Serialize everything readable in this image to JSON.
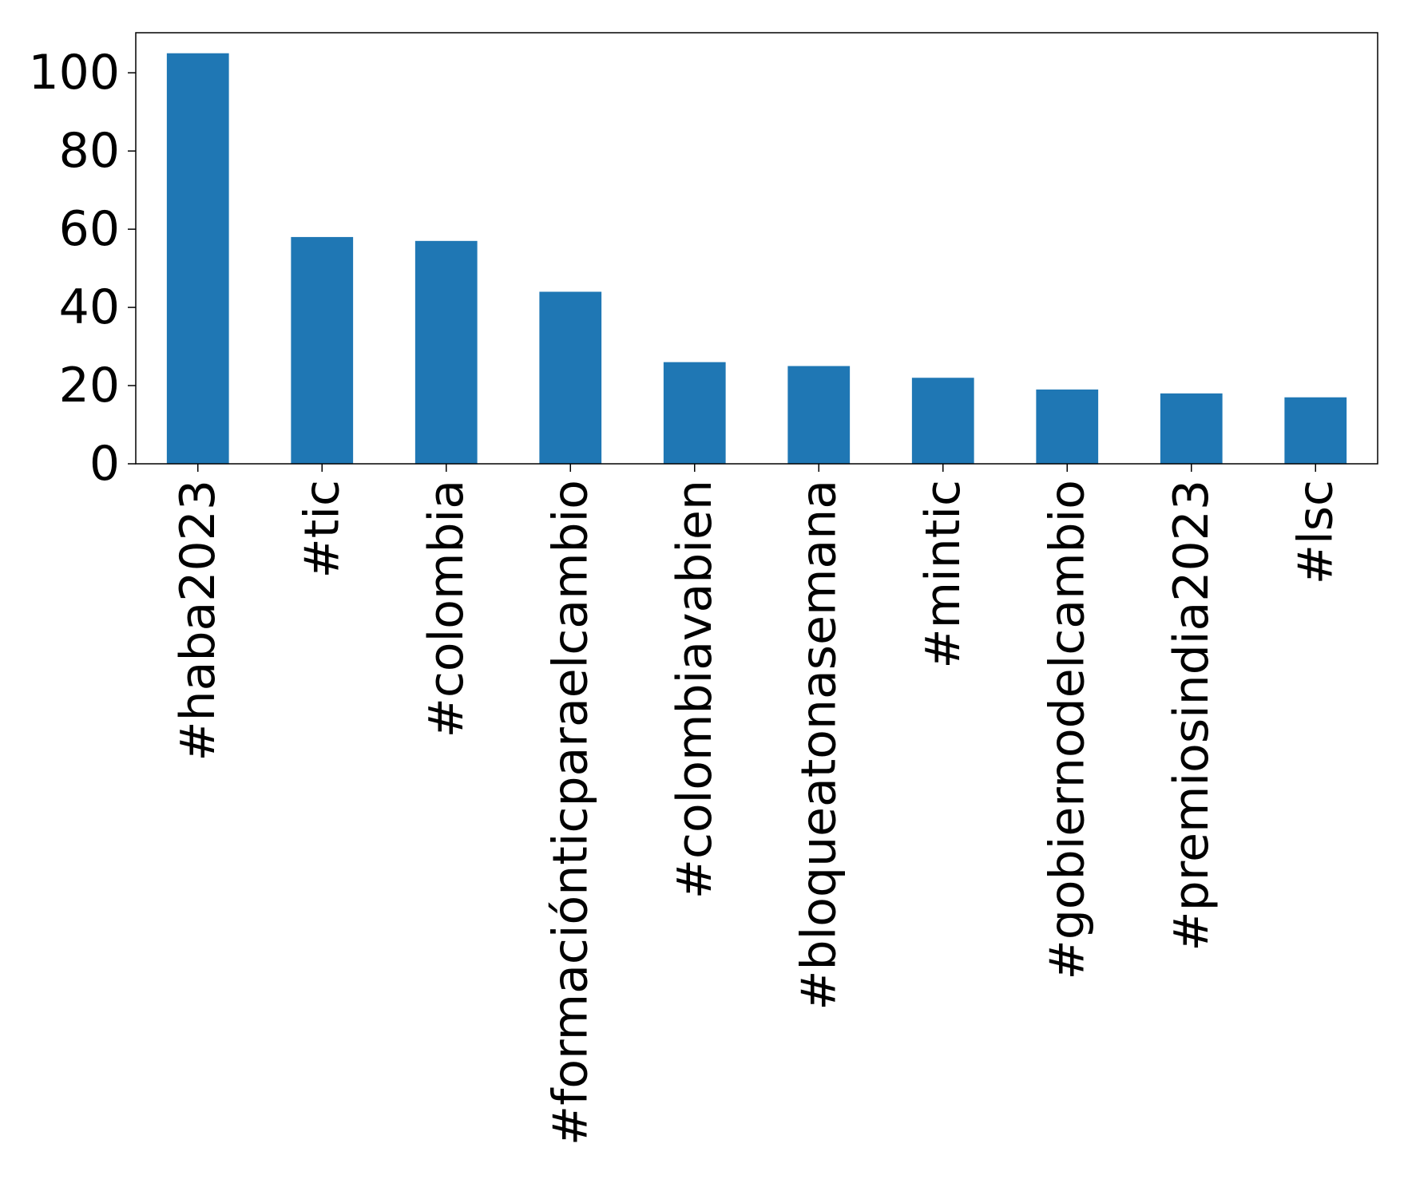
{
  "chart_data": {
    "type": "bar",
    "title": "",
    "xlabel": "",
    "ylabel": "",
    "categories": [
      "#haba2023",
      "#tic",
      "#colombia",
      "#formaciónticparaelcambio",
      "#colombiavabien",
      "#bloqueatonasemana",
      "#mintic",
      "#gobiernodelcambio",
      "#premiosindia2023",
      "#lsc"
    ],
    "values": [
      105,
      58,
      57,
      44,
      26,
      25,
      22,
      19,
      18,
      17
    ],
    "ylim": [
      0,
      110.25
    ],
    "yticks": [
      0,
      20,
      40,
      60,
      80,
      100
    ],
    "bar_color": "#1f77b4",
    "grid": false,
    "legend": "none"
  }
}
